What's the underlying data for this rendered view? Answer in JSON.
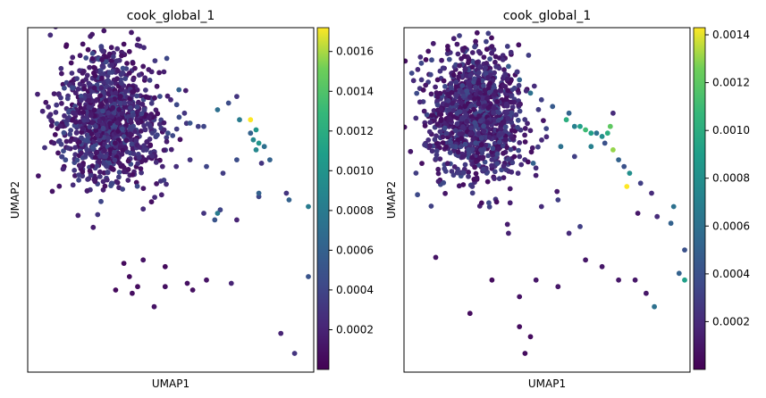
{
  "chart_data": [
    {
      "type": "scatter",
      "title": "cook_global_1",
      "xlabel": "UMAP1",
      "ylabel": "UMAP2",
      "grid": false,
      "colormap": "viridis",
      "colorbar": {
        "min": 0.0,
        "max": 0.00172,
        "ticks": [
          0.0002,
          0.0004,
          0.0006,
          0.0008,
          0.001,
          0.0012,
          0.0014,
          0.0016
        ],
        "tick_labels": [
          "0.0002",
          "0.0004",
          "0.0006",
          "0.0008",
          "0.0010",
          "0.0012",
          "0.0014",
          "0.0016"
        ]
      },
      "xlim": [
        0,
        100
      ],
      "ylim": [
        0,
        100
      ],
      "n_background_points": 1100,
      "points": [
        [
          12,
          96,
          5e-05
        ],
        [
          20,
          95,
          6e-05
        ],
        [
          25,
          92,
          8e-05
        ],
        [
          18,
          88,
          0.00012
        ],
        [
          35,
          88,
          9e-05
        ],
        [
          40,
          90,
          0.0001
        ],
        [
          45,
          84,
          0.00011
        ],
        [
          30,
          82,
          0.0002
        ],
        [
          50,
          80,
          0.00022
        ],
        [
          55,
          76,
          0.0003
        ],
        [
          60,
          72,
          0.00035
        ],
        [
          62,
          72,
          0.0004
        ],
        [
          67,
          77,
          0.0007
        ],
        [
          57,
          73,
          0.0005
        ],
        [
          53,
          83,
          0.0006
        ],
        [
          49,
          70,
          0.00045
        ],
        [
          57,
          62,
          0.0003
        ],
        [
          52,
          60,
          0.00025
        ],
        [
          63,
          60,
          0.0004
        ],
        [
          69,
          58,
          0.00035
        ],
        [
          74,
          62,
          0.00045
        ],
        [
          79,
          70,
          0.0006
        ],
        [
          80,
          68,
          0.0009
        ],
        [
          81,
          71,
          0.001
        ],
        [
          84,
          66,
          0.0007
        ],
        [
          92,
          52,
          0.0003
        ],
        [
          74,
          44,
          0.0002
        ],
        [
          82,
          51,
          0.0004
        ],
        [
          82,
          52,
          0.0006
        ],
        [
          68,
          47,
          0.0004
        ],
        [
          66,
          44,
          0.0005
        ],
        [
          62,
          46,
          0.0003
        ],
        [
          47,
          60,
          0.0002
        ],
        [
          71,
          79,
          0.00045
        ],
        [
          75,
          74,
          0.0008
        ],
        [
          74,
          81,
          0.0003
        ],
        [
          79,
          74,
          0.00172
        ],
        [
          82,
          67,
          0.001
        ],
        [
          81,
          65,
          0.0009
        ],
        [
          83,
          61,
          0.0003
        ],
        [
          86,
          62,
          0.0006
        ],
        [
          93,
          50,
          0.0006
        ],
        [
          100,
          48,
          0.0008
        ],
        [
          67,
          46,
          0.0008
        ],
        [
          40,
          32,
          0.0001
        ],
        [
          33,
          31,
          5e-05
        ],
        [
          48,
          30,
          5e-05
        ],
        [
          63,
          26,
          0.0001
        ],
        [
          48,
          24,
          8e-05
        ],
        [
          56,
          25,
          9e-05
        ],
        [
          72,
          25,
          0.0002
        ],
        [
          90,
          10,
          0.0002
        ],
        [
          100,
          27,
          0.0005
        ],
        [
          95,
          4,
          0.0003
        ],
        [
          35,
          27,
          6e-05
        ],
        [
          30,
          23,
          5e-05
        ],
        [
          36,
          22,
          7e-05
        ],
        [
          38,
          24,
          6e-05
        ],
        [
          44,
          18,
          0.0001
        ],
        [
          58,
          23,
          8e-05
        ]
      ]
    },
    {
      "type": "scatter",
      "title": "cook_global_1",
      "xlabel": "UMAP1",
      "ylabel": "UMAP2",
      "grid": false,
      "colormap": "viridis",
      "colorbar": {
        "min": 0.0,
        "max": 0.00143,
        "ticks": [
          0.0002,
          0.0004,
          0.0006,
          0.0008,
          0.001,
          0.0012,
          0.0014
        ],
        "tick_labels": [
          "0.0002",
          "0.0004",
          "0.0006",
          "0.0008",
          "0.0010",
          "0.0012",
          "0.0014"
        ]
      },
      "xlim": [
        0,
        100
      ],
      "ylim": [
        0,
        100
      ],
      "n_background_points": 1100,
      "points": [
        [
          6,
          92,
          5e-05
        ],
        [
          14,
          95,
          6e-05
        ],
        [
          20,
          93,
          8e-05
        ],
        [
          30,
          96,
          0.0001
        ],
        [
          34,
          92,
          0.0002
        ],
        [
          36,
          90,
          0.00045
        ],
        [
          40,
          86,
          0.0005
        ],
        [
          44,
          82,
          0.0006
        ],
        [
          48,
          80,
          0.0003
        ],
        [
          52,
          78,
          0.00045
        ],
        [
          57,
          74,
          0.001
        ],
        [
          58,
          76,
          0.0005
        ],
        [
          60,
          72,
          0.0007
        ],
        [
          62,
          72,
          0.0009
        ],
        [
          64,
          71,
          0.0011
        ],
        [
          66,
          70,
          0.0009
        ],
        [
          68,
          70,
          0.0006
        ],
        [
          70,
          69,
          0.0008
        ],
        [
          72,
          70,
          0.001
        ],
        [
          73,
          72,
          0.0012
        ],
        [
          71,
          67,
          0.0004
        ],
        [
          74,
          65,
          0.0013
        ],
        [
          76,
          62,
          0.0005
        ],
        [
          78,
          60,
          0.0004
        ],
        [
          80,
          58,
          0.0008
        ],
        [
          79,
          54,
          0.00143
        ],
        [
          84,
          55,
          0.0003
        ],
        [
          88,
          52,
          0.0002
        ],
        [
          83,
          46,
          0.0001
        ],
        [
          90,
          45,
          0.0002
        ],
        [
          95,
          43,
          0.0005
        ],
        [
          96,
          48,
          0.0006
        ],
        [
          100,
          35,
          0.0004
        ],
        [
          98,
          28,
          0.0005
        ],
        [
          100,
          26,
          0.0009
        ],
        [
          89,
          18,
          0.0006
        ],
        [
          82,
          26,
          0.0001
        ],
        [
          86,
          22,
          0.0001
        ],
        [
          76,
          26,
          0.0001
        ],
        [
          54,
          24,
          0.0001
        ],
        [
          46,
          26,
          0.0001
        ],
        [
          40,
          21,
          8e-05
        ],
        [
          30,
          26,
          5e-05
        ],
        [
          40,
          12,
          5e-05
        ],
        [
          44,
          9,
          5e-05
        ],
        [
          42,
          4,
          5e-05
        ],
        [
          22,
          16,
          5e-05
        ],
        [
          64,
          32,
          0.0001
        ],
        [
          70,
          30,
          0.0001
        ],
        [
          58,
          40,
          0.0002
        ],
        [
          62,
          42,
          0.0003
        ],
        [
          54,
          50,
          0.0003
        ],
        [
          48,
          48,
          0.0002
        ],
        [
          36,
          40,
          0.00015
        ],
        [
          45,
          61,
          0.0005
        ],
        [
          60,
          63,
          0.0003
        ],
        [
          66,
          66,
          0.0007
        ],
        [
          55,
          66,
          0.0006
        ],
        [
          74,
          76,
          0.0002
        ],
        [
          40,
          63,
          0.0002
        ]
      ]
    }
  ]
}
